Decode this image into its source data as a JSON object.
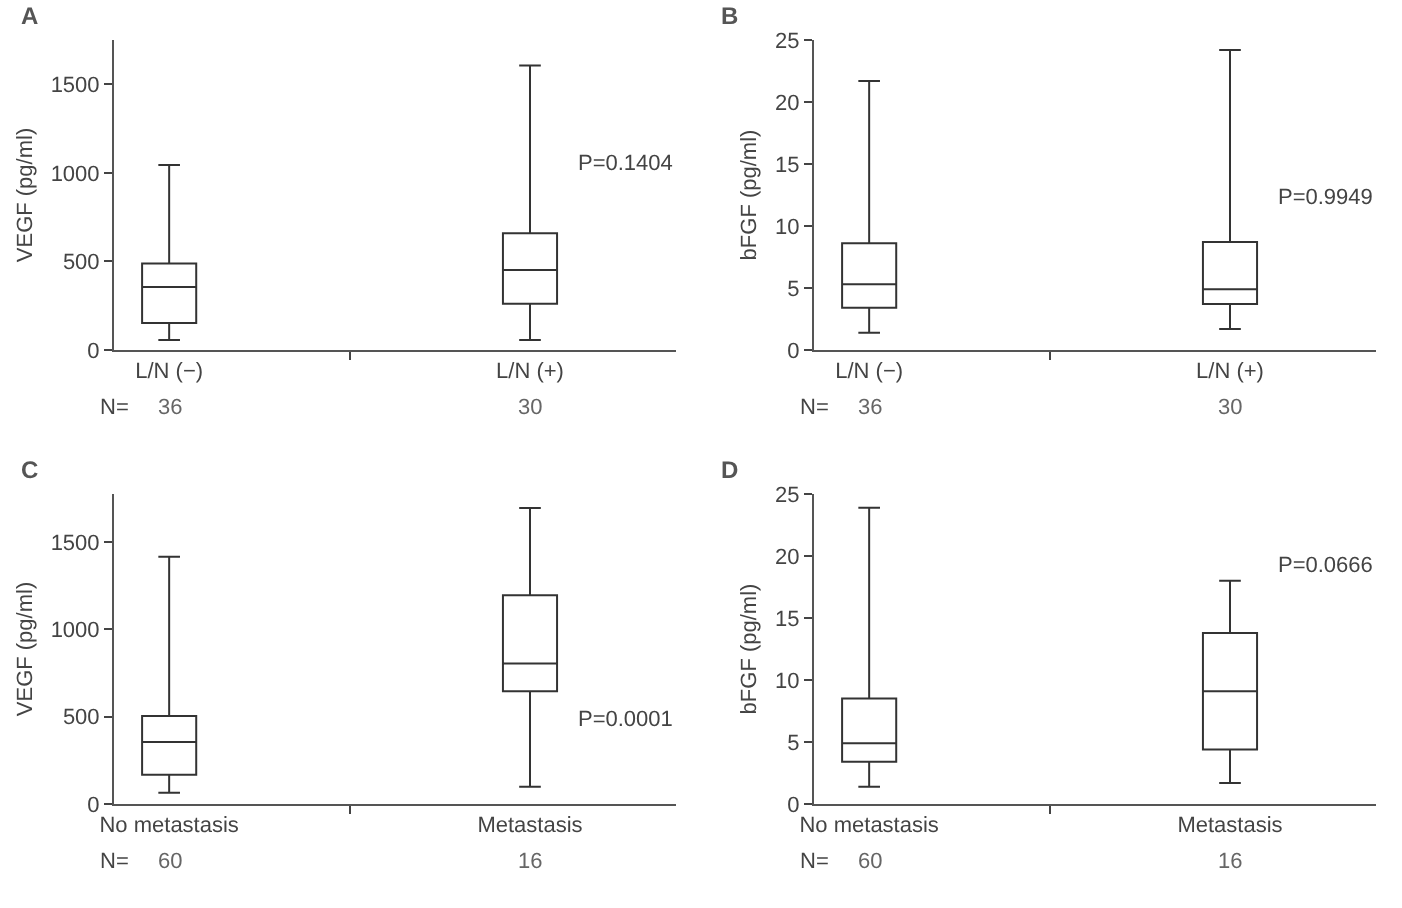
{
  "chart_data": [
    {
      "type": "box",
      "title": "A",
      "ylabel": "VEGF (pg/ml)",
      "categories": [
        "L/N (−)",
        "L/N (+)"
      ],
      "boxes": [
        {
          "low": 57,
          "q1": 152,
          "median": 356,
          "q3": 489,
          "high": 1045
        },
        {
          "low": 57,
          "q1": 261,
          "median": 451,
          "q3": 659,
          "high": 1606
        }
      ],
      "ylim": [
        0,
        1750
      ],
      "yticks": [
        0,
        500,
        1000,
        1500
      ],
      "grid": false,
      "annotations": [
        "N=",
        "36",
        "30",
        "P=0.1404"
      ]
    },
    {
      "type": "box",
      "title": "B",
      "ylabel": "bFGF (pg/ml)",
      "categories": [
        "L/N (−)",
        "L/N (+)"
      ],
      "boxes": [
        {
          "low": 1.4,
          "q1": 3.4,
          "median": 5.3,
          "q3": 8.6,
          "high": 21.7
        },
        {
          "low": 1.7,
          "q1": 3.7,
          "median": 4.9,
          "q3": 8.7,
          "high": 24.2
        }
      ],
      "ylim": [
        0,
        25
      ],
      "yticks": [
        0,
        5,
        10,
        15,
        20,
        25
      ],
      "grid": false,
      "annotations": [
        "N=",
        "36",
        "30",
        "P=0.9949"
      ]
    },
    {
      "type": "box",
      "title": "C",
      "ylabel": "VEGF (pg/ml)",
      "categories": [
        "No metastasis",
        "Metastasis"
      ],
      "boxes": [
        {
          "low": 65,
          "q1": 168,
          "median": 355,
          "q3": 504,
          "high": 1416
        },
        {
          "low": 99,
          "q1": 645,
          "median": 805,
          "q3": 1195,
          "high": 1695
        }
      ],
      "ylim": [
        0,
        1775
      ],
      "yticks": [
        0,
        500,
        1000,
        1500
      ],
      "grid": false,
      "annotations": [
        "N=",
        "60",
        "16",
        "P=0.0001"
      ]
    },
    {
      "type": "box",
      "title": "D",
      "ylabel": "bFGF (pg/ml)",
      "categories": [
        "No metastasis",
        "Metastasis"
      ],
      "boxes": [
        {
          "low": 1.4,
          "q1": 3.4,
          "median": 4.9,
          "q3": 8.5,
          "high": 23.9
        },
        {
          "low": 1.7,
          "q1": 4.4,
          "median": 9.1,
          "q3": 13.8,
          "high": 18.0
        }
      ],
      "ylim": [
        0,
        25
      ],
      "yticks": [
        0,
        5,
        10,
        15,
        20,
        25
      ],
      "grid": false,
      "annotations": [
        "N=",
        "60",
        "16",
        "P=0.0666"
      ]
    }
  ]
}
